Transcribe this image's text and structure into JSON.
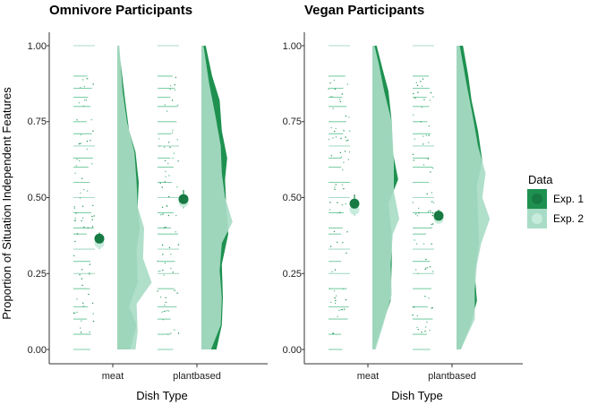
{
  "colors": {
    "exp1": "#1e9150",
    "exp2": "#a9dcc6",
    "axis": "#333333"
  },
  "chart_data": {
    "type": "raincloud",
    "ylabel": "Proportion of Situation Independent Features",
    "xlabel": "Dish Type",
    "ylim": [
      0,
      1
    ],
    "yticks": [
      "0.00",
      "0.25",
      "0.50",
      "0.75",
      "1.00"
    ],
    "categories": [
      "meat",
      "plantbased"
    ],
    "legend": {
      "title": "Data",
      "entries": [
        "Exp. 1",
        "Exp. 2"
      ],
      "position": "right"
    },
    "panels": [
      {
        "title": "Omnivore Participants",
        "means": [
          {
            "category": "meat",
            "series": "Exp. 1",
            "mean": 0.365,
            "lo": 0.345,
            "hi": 0.385
          },
          {
            "category": "meat",
            "series": "Exp. 2",
            "mean": 0.35,
            "lo": 0.33,
            "hi": 0.37
          },
          {
            "category": "plantbased",
            "series": "Exp. 1",
            "mean": 0.495,
            "lo": 0.465,
            "hi": 0.525
          },
          {
            "category": "plantbased",
            "series": "Exp. 2",
            "mean": 0.485,
            "lo": 0.465,
            "hi": 0.505
          }
        ]
      },
      {
        "title": "Vegan Participants",
        "means": [
          {
            "category": "meat",
            "series": "Exp. 1",
            "mean": 0.48,
            "lo": 0.455,
            "hi": 0.51
          },
          {
            "category": "meat",
            "series": "Exp. 2",
            "mean": 0.46,
            "lo": 0.44,
            "hi": 0.48
          },
          {
            "category": "plantbased",
            "series": "Exp. 1",
            "mean": 0.44,
            "lo": 0.42,
            "hi": 0.46
          },
          {
            "category": "plantbased",
            "series": "Exp. 2",
            "mean": 0.43,
            "lo": 0.415,
            "hi": 0.445
          }
        ]
      }
    ]
  }
}
